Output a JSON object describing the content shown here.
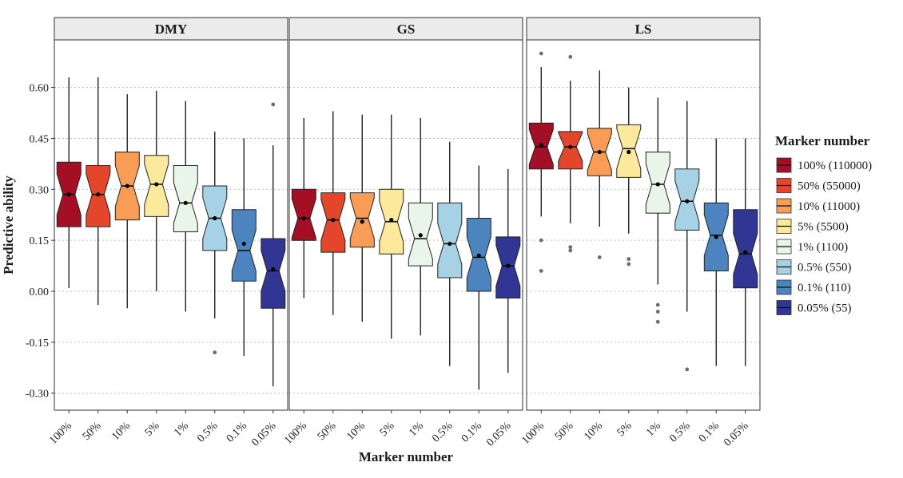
{
  "chart_data": {
    "type": "boxplot",
    "facets": [
      "DMY",
      "GS",
      "LS"
    ],
    "categories": [
      "100%",
      "50%",
      "10%",
      "5%",
      "1%",
      "0.5%",
      "0.1%",
      "0.05%"
    ],
    "legend": {
      "title": "Marker number",
      "entries": [
        "100% (110000)",
        "50% (55000)",
        "10% (11000)",
        "5% (5500)",
        "1% (1100)",
        "0.5% (550)",
        "0.1% (110)",
        "0.05% (55)"
      ],
      "colors": [
        "#a50f26",
        "#e4462b",
        "#f99c55",
        "#fde99c",
        "#e9f5e9",
        "#a7d2e6",
        "#4c84c0",
        "#313695"
      ],
      "position": "right"
    },
    "xlabel": "Marker number",
    "ylabel": "Predictive ability",
    "ylim": [
      -0.35,
      0.74
    ],
    "yticks": [
      "0.60",
      "0.45",
      "0.30",
      "0.15",
      "0.00",
      "-0.15",
      "-0.30"
    ],
    "ytick_values": [
      0.6,
      0.45,
      0.3,
      0.15,
      0.0,
      -0.15,
      -0.3
    ],
    "grid": "horizontal dotted",
    "panels": [
      {
        "facet": "DMY",
        "boxes": [
          {
            "category": "100%",
            "whisker_low": 0.01,
            "q1": 0.19,
            "median": 0.285,
            "q3": 0.38,
            "whisker_high": 0.63,
            "mean": 0.285,
            "outliers": []
          },
          {
            "category": "50%",
            "whisker_low": -0.04,
            "q1": 0.19,
            "median": 0.285,
            "q3": 0.37,
            "whisker_high": 0.63,
            "mean": 0.285,
            "outliers": []
          },
          {
            "category": "10%",
            "whisker_low": -0.05,
            "q1": 0.21,
            "median": 0.31,
            "q3": 0.41,
            "whisker_high": 0.58,
            "mean": 0.31,
            "outliers": []
          },
          {
            "category": "5%",
            "whisker_low": 0.0,
            "q1": 0.22,
            "median": 0.315,
            "q3": 0.4,
            "whisker_high": 0.59,
            "mean": 0.315,
            "outliers": []
          },
          {
            "category": "1%",
            "whisker_low": -0.06,
            "q1": 0.175,
            "median": 0.26,
            "q3": 0.37,
            "whisker_high": 0.56,
            "mean": 0.26,
            "outliers": []
          },
          {
            "category": "0.5%",
            "whisker_low": -0.08,
            "q1": 0.12,
            "median": 0.215,
            "q3": 0.31,
            "whisker_high": 0.47,
            "mean": 0.215,
            "outliers": [
              -0.18
            ]
          },
          {
            "category": "0.1%",
            "whisker_low": -0.19,
            "q1": 0.03,
            "median": 0.12,
            "q3": 0.24,
            "whisker_high": 0.45,
            "mean": 0.14,
            "outliers": []
          },
          {
            "category": "0.05%",
            "whisker_low": -0.28,
            "q1": -0.05,
            "median": 0.06,
            "q3": 0.155,
            "whisker_high": 0.43,
            "mean": 0.065,
            "outliers": [
              0.55
            ]
          }
        ]
      },
      {
        "facet": "GS",
        "boxes": [
          {
            "category": "100%",
            "whisker_low": -0.02,
            "q1": 0.15,
            "median": 0.215,
            "q3": 0.3,
            "whisker_high": 0.51,
            "mean": 0.215,
            "outliers": []
          },
          {
            "category": "50%",
            "whisker_low": -0.07,
            "q1": 0.115,
            "median": 0.21,
            "q3": 0.29,
            "whisker_high": 0.53,
            "mean": 0.21,
            "outliers": []
          },
          {
            "category": "10%",
            "whisker_low": -0.09,
            "q1": 0.13,
            "median": 0.215,
            "q3": 0.29,
            "whisker_high": 0.52,
            "mean": 0.205,
            "outliers": []
          },
          {
            "category": "5%",
            "whisker_low": -0.14,
            "q1": 0.11,
            "median": 0.205,
            "q3": 0.3,
            "whisker_high": 0.52,
            "mean": 0.21,
            "outliers": []
          },
          {
            "category": "1%",
            "whisker_low": -0.13,
            "q1": 0.075,
            "median": 0.155,
            "q3": 0.26,
            "whisker_high": 0.51,
            "mean": 0.165,
            "outliers": []
          },
          {
            "category": "0.5%",
            "whisker_low": -0.22,
            "q1": 0.04,
            "median": 0.14,
            "q3": 0.26,
            "whisker_high": 0.44,
            "mean": 0.14,
            "outliers": []
          },
          {
            "category": "0.1%",
            "whisker_low": -0.29,
            "q1": 0.0,
            "median": 0.1,
            "q3": 0.215,
            "whisker_high": 0.37,
            "mean": 0.105,
            "outliers": []
          },
          {
            "category": "0.05%",
            "whisker_low": -0.24,
            "q1": -0.02,
            "median": 0.075,
            "q3": 0.16,
            "whisker_high": 0.36,
            "mean": 0.075,
            "outliers": []
          }
        ]
      },
      {
        "facet": "LS",
        "boxes": [
          {
            "category": "100%",
            "whisker_low": 0.22,
            "q1": 0.36,
            "median": 0.425,
            "q3": 0.495,
            "whisker_high": 0.66,
            "mean": 0.43,
            "outliers": [
              0.7,
              0.15,
              0.06
            ]
          },
          {
            "category": "50%",
            "whisker_low": 0.2,
            "q1": 0.36,
            "median": 0.425,
            "q3": 0.47,
            "whisker_high": 0.62,
            "mean": 0.425,
            "outliers": [
              0.69,
              0.13,
              0.12
            ]
          },
          {
            "category": "10%",
            "whisker_low": 0.19,
            "q1": 0.34,
            "median": 0.41,
            "q3": 0.48,
            "whisker_high": 0.65,
            "mean": 0.41,
            "outliers": [
              0.1
            ]
          },
          {
            "category": "5%",
            "whisker_low": 0.17,
            "q1": 0.335,
            "median": 0.42,
            "q3": 0.49,
            "whisker_high": 0.6,
            "mean": 0.41,
            "outliers": [
              0.095,
              0.08
            ]
          },
          {
            "category": "1%",
            "whisker_low": 0.02,
            "q1": 0.23,
            "median": 0.315,
            "q3": 0.41,
            "whisker_high": 0.57,
            "mean": 0.315,
            "outliers": [
              -0.04,
              -0.06,
              -0.09
            ]
          },
          {
            "category": "0.5%",
            "whisker_low": -0.06,
            "q1": 0.18,
            "median": 0.265,
            "q3": 0.36,
            "whisker_high": 0.56,
            "mean": 0.265,
            "outliers": [
              -0.23
            ]
          },
          {
            "category": "0.1%",
            "whisker_low": -0.22,
            "q1": 0.06,
            "median": 0.165,
            "q3": 0.26,
            "whisker_high": 0.45,
            "mean": 0.16,
            "outliers": []
          },
          {
            "category": "0.05%",
            "whisker_low": -0.22,
            "q1": 0.01,
            "median": 0.11,
            "q3": 0.24,
            "whisker_high": 0.45,
            "mean": 0.115,
            "outliers": []
          }
        ]
      }
    ]
  }
}
